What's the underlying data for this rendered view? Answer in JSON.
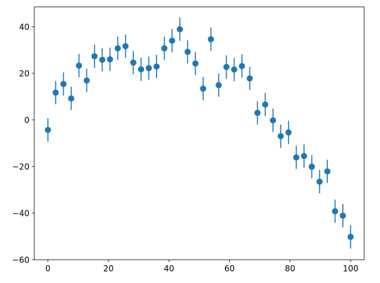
{
  "chart_data": {
    "type": "scatter",
    "title": "",
    "xlabel": "",
    "ylabel": "",
    "xlim": [
      -4.5,
      104.5
    ],
    "ylim": [
      -60,
      48.5
    ],
    "grid": false,
    "legend": "none",
    "xticks": [
      0,
      20,
      40,
      60,
      80,
      100
    ],
    "yticks": [
      -60,
      -40,
      -20,
      0,
      20,
      40
    ],
    "xtick_labels": [
      "0",
      "20",
      "40",
      "60",
      "80",
      "100"
    ],
    "ytick_labels": [
      "−60",
      "−40",
      "−20",
      "0",
      "20",
      "40"
    ],
    "color": "#1f77b4",
    "series": [
      {
        "x": [
          0,
          2.56,
          5.13,
          7.69,
          10.26,
          12.82,
          15.38,
          17.95,
          20.51,
          23.08,
          25.64,
          28.21,
          30.77,
          33.33,
          35.9,
          38.46,
          41.03,
          43.59,
          46.15,
          48.72,
          51.28,
          53.85,
          56.41,
          58.97,
          61.54,
          64.1,
          66.67,
          69.23,
          71.79,
          74.36,
          76.92,
          79.49,
          82.05,
          84.62,
          87.18,
          89.74,
          92.31,
          94.87,
          97.44,
          100
        ],
        "y": [
          -4.3,
          11.7,
          15.4,
          9.2,
          23.3,
          16.9,
          27.3,
          25.8,
          26.0,
          30.7,
          31.6,
          24.6,
          21.7,
          22.2,
          22.9,
          30.7,
          34.0,
          38.9,
          29.2,
          24.2,
          13.4,
          34.6,
          14.9,
          22.7,
          21.6,
          23.1,
          17.8,
          3.0,
          6.6,
          -0.2,
          -7.0,
          -5.4,
          -16.1,
          -15.5,
          -20.1,
          -26.5,
          -22.1,
          -39.2,
          -41.1,
          -50.2
        ],
        "yerr": 5
      }
    ]
  }
}
